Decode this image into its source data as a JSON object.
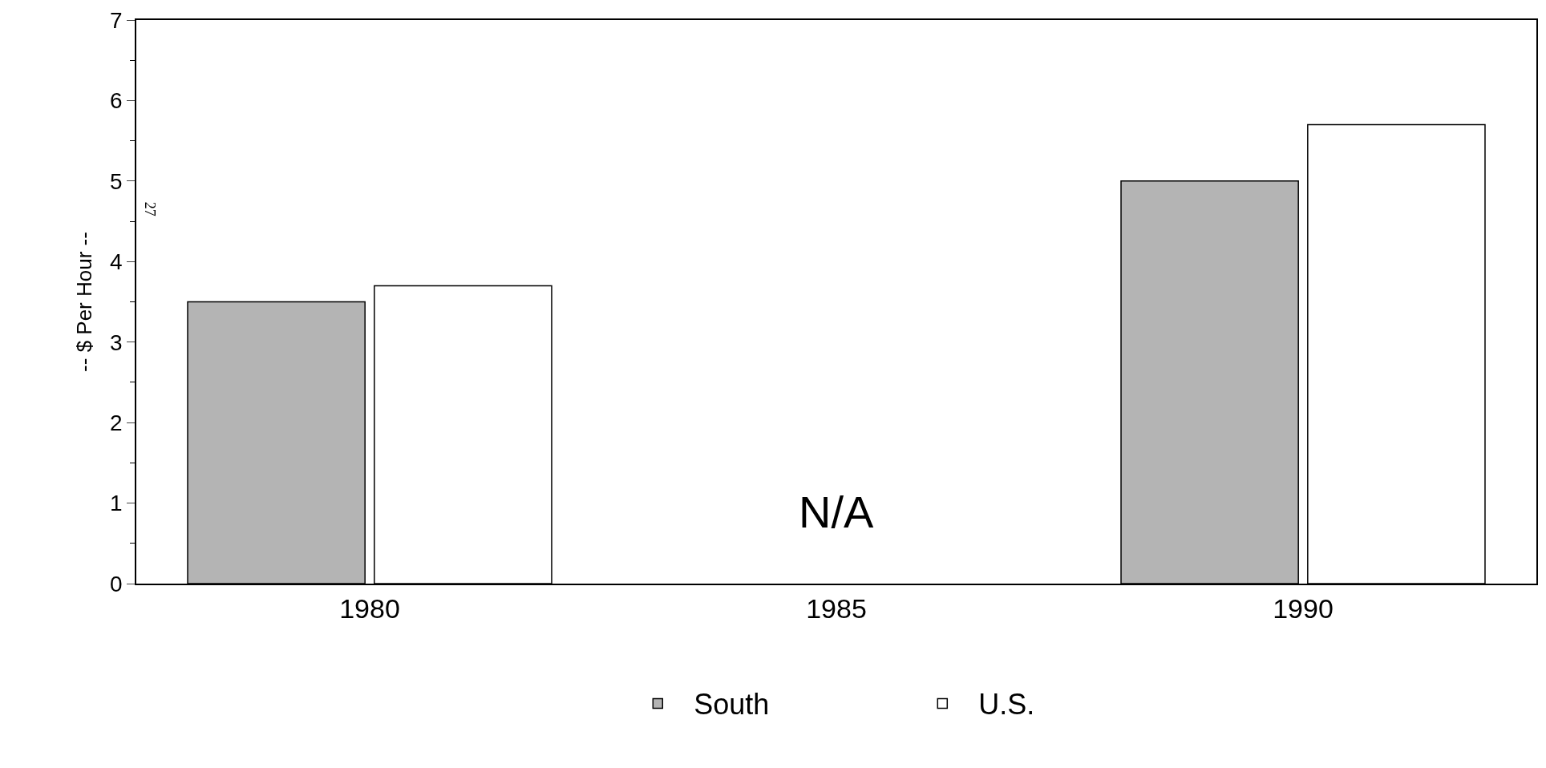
{
  "chart_data": {
    "type": "bar",
    "ylabel": "-- $ Per Hour --",
    "categories": [
      "1980",
      "1985",
      "1990"
    ],
    "series": [
      {
        "name": "South",
        "color": "#b4b4b4",
        "values": [
          3.5,
          null,
          5.0
        ]
      },
      {
        "name": "U.S.",
        "color": "#ffffff",
        "values": [
          3.7,
          null,
          5.7
        ]
      }
    ],
    "ylim": [
      0,
      7
    ],
    "yticks": [
      0,
      1,
      2,
      3,
      4,
      5,
      6,
      7
    ],
    "annotations": [
      "N/A",
      "27"
    ],
    "legend": "bottom"
  }
}
